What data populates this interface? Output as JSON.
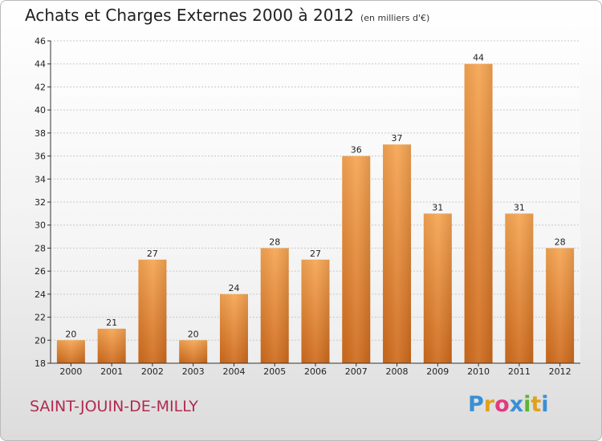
{
  "header": {
    "title": "Achats et Charges Externes 2000 à 2012",
    "subtitle": "(en milliers d'€)"
  },
  "footer": {
    "place": "SAINT-JOUIN-DE-MILLY",
    "logo_letters": [
      "P",
      "r",
      "o",
      "x",
      "i",
      "t",
      "i"
    ],
    "logo_colors": [
      "#3a8fd6",
      "#e0a21c",
      "#e33a7f",
      "#3a8fd6",
      "#5cb531",
      "#e0a21c",
      "#3a8fd6"
    ]
  },
  "chart_data": {
    "type": "bar",
    "categories": [
      "2000",
      "2001",
      "2002",
      "2003",
      "2004",
      "2005",
      "2006",
      "2007",
      "2008",
      "2009",
      "2010",
      "2011",
      "2012"
    ],
    "values": [
      20,
      21,
      27,
      20,
      24,
      28,
      27,
      36,
      37,
      31,
      44,
      31,
      28
    ],
    "title": "Achats et Charges Externes 2000 à 2012",
    "subtitle": "(en milliers d'€)",
    "xlabel": "",
    "ylabel": "",
    "ylim": [
      18,
      46
    ],
    "yticks": [
      18,
      20,
      22,
      24,
      26,
      28,
      30,
      32,
      34,
      36,
      38,
      40,
      42,
      44,
      46
    ],
    "grid": true,
    "bar_color_top": "#f6a552",
    "bar_color_bottom": "#cf6a1c"
  }
}
